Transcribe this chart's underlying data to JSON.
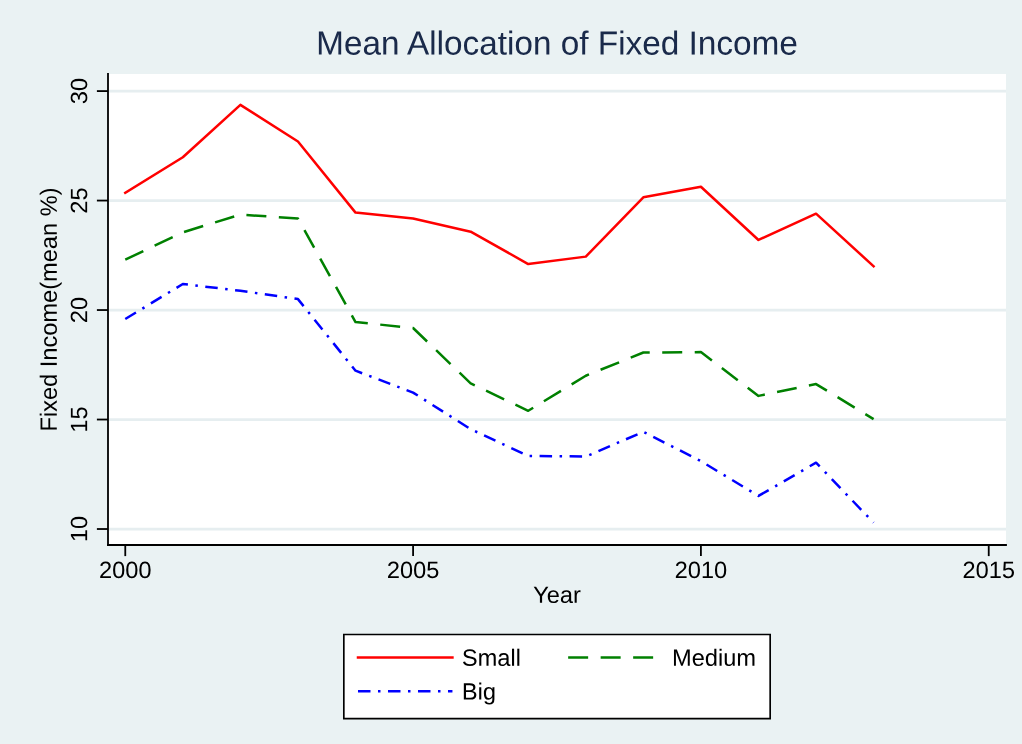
{
  "chart_data": {
    "type": "line",
    "title": "Mean Allocation of Fixed Income",
    "xlabel": "Year",
    "ylabel": "Fixed Income(mean %)",
    "x": [
      2000,
      2001,
      2002,
      2003,
      2004,
      2005,
      2006,
      2007,
      2008,
      2009,
      2010,
      2011,
      2012,
      2013
    ],
    "series": [
      {
        "name": "Small",
        "color": "#ff0000",
        "line_style": "solid",
        "values": [
          25.35,
          26.98,
          29.37,
          27.7,
          24.45,
          24.18,
          23.58,
          22.1,
          22.44,
          25.15,
          25.63,
          23.2,
          24.4,
          22.0
        ]
      },
      {
        "name": "Medium",
        "color": "#008000",
        "line_style": "dashed",
        "values": [
          22.3,
          23.55,
          24.36,
          24.18,
          19.45,
          19.18,
          16.65,
          15.4,
          17.0,
          18.06,
          18.08,
          16.08,
          16.62,
          15.02
        ]
      },
      {
        "name": "Big",
        "color": "#0000ff",
        "line_style": "dashdot",
        "values": [
          19.59,
          21.19,
          20.88,
          20.5,
          17.23,
          16.23,
          14.56,
          13.34,
          13.31,
          14.44,
          13.1,
          11.51,
          13.03,
          10.29
        ]
      }
    ],
    "xlim": [
      1999.7,
      2015.3
    ],
    "xticks": [
      2000,
      2005,
      2010,
      2015
    ],
    "ylim": [
      9.27,
      30.78
    ],
    "yticks": [
      10,
      15,
      20,
      25,
      30
    ],
    "grid": "y",
    "legend": "bottom",
    "marker": "none"
  }
}
